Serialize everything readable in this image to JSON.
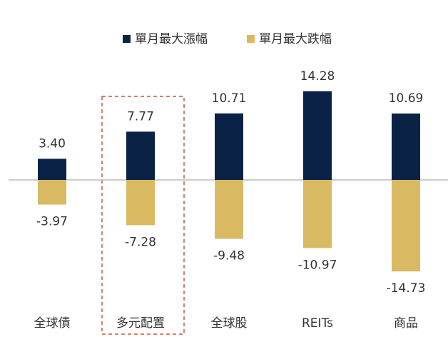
{
  "chart_data": {
    "type": "bar",
    "categories": [
      "全球債",
      "多元配置",
      "全球股",
      "REITs",
      "商品"
    ],
    "series": [
      {
        "name": "單月最大漲幅",
        "color": "#0b2247",
        "values": [
          3.4,
          7.77,
          10.71,
          14.28,
          10.69
        ],
        "value_labels": [
          "3.40",
          "7.77",
          "10.71",
          "14.28",
          "10.69"
        ]
      },
      {
        "name": "單月最大跌幅",
        "color": "#d9b962",
        "values": [
          -3.97,
          -7.28,
          -9.48,
          -10.97,
          -14.73
        ],
        "value_labels": [
          "-3.97",
          "-7.28",
          "-9.48",
          "-10.97",
          "-14.73"
        ]
      }
    ]
  }
}
